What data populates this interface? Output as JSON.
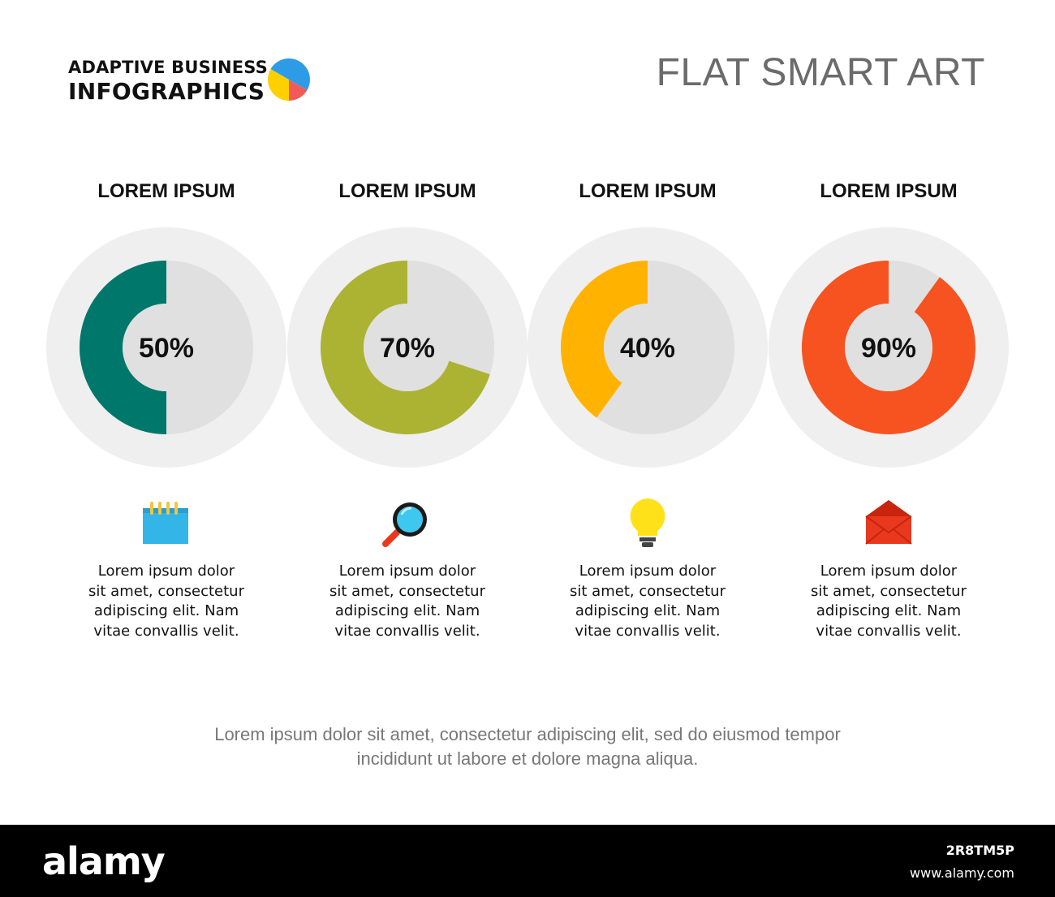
{
  "header": {
    "brand_line1": "ADAPTIVE BUSINESS",
    "brand_line2": "INFOGRAPHICS",
    "title": "FLAT SMART ART",
    "logo_colors": [
      "#2e9be6",
      "#f25a5a",
      "#ffd000"
    ]
  },
  "chart_data": {
    "type": "donut",
    "max": 100,
    "series": [
      {
        "title": "LOREM IPSUM",
        "value": 50,
        "label": "50%",
        "color": "#00776b",
        "icon": "notepad-icon",
        "description": [
          "Lorem ipsum dolor",
          "sit amet, consectetur",
          "adipiscing elit. Nam",
          "vitae convallis velit."
        ]
      },
      {
        "title": "LOREM IPSUM",
        "value": 70,
        "label": "70%",
        "color": "#acb333",
        "icon": "magnifier-icon",
        "description": [
          "Lorem ipsum dolor",
          "sit amet, consectetur",
          "adipiscing elit. Nam",
          "vitae convallis velit."
        ]
      },
      {
        "title": "LOREM IPSUM",
        "value": 40,
        "label": "40%",
        "color": "#ffb300",
        "icon": "lightbulb-icon",
        "description": [
          "Lorem ipsum dolor",
          "sit amet, consectetur",
          "adipiscing elit. Nam",
          "vitae convallis velit."
        ]
      },
      {
        "title": "LOREM IPSUM",
        "value": 90,
        "label": "90%",
        "color": "#f65321",
        "icon": "envelope-icon",
        "description": [
          "Lorem ipsum dolor",
          "sit amet, consectetur",
          "adipiscing elit. Nam",
          "vitae convallis velit."
        ]
      }
    ],
    "track_color": "#e0e0e0",
    "outer_color": "#efefef"
  },
  "footer": {
    "line1": "Lorem ipsum dolor sit amet, consectetur adipiscing elit, sed do eiusmod tempor",
    "line2": "incididunt ut labore et dolore magna aliqua."
  },
  "watermark": {
    "logo": "alamy",
    "image_id": "2R8TM5P",
    "site": "www.alamy.com"
  }
}
